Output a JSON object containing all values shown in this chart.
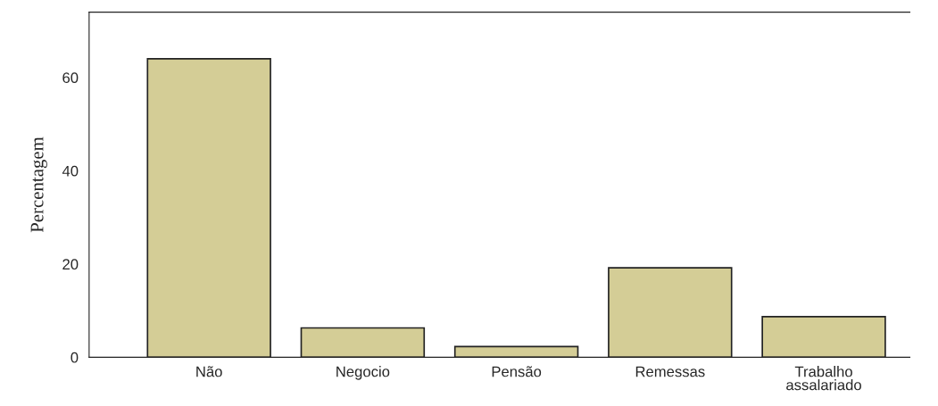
{
  "chart_data": {
    "type": "bar",
    "ylabel": "Percentagem",
    "categories": [
      "Não",
      "Negocio",
      "Pensão",
      "Remessas",
      "Trabalho\nassalariado"
    ],
    "values": [
      64.0,
      6.3,
      2.3,
      19.2,
      8.7
    ],
    "color": "#d4cd96",
    "ylim": [
      0,
      74
    ],
    "yticks": [
      0,
      20,
      40,
      60
    ],
    "grid": false
  }
}
